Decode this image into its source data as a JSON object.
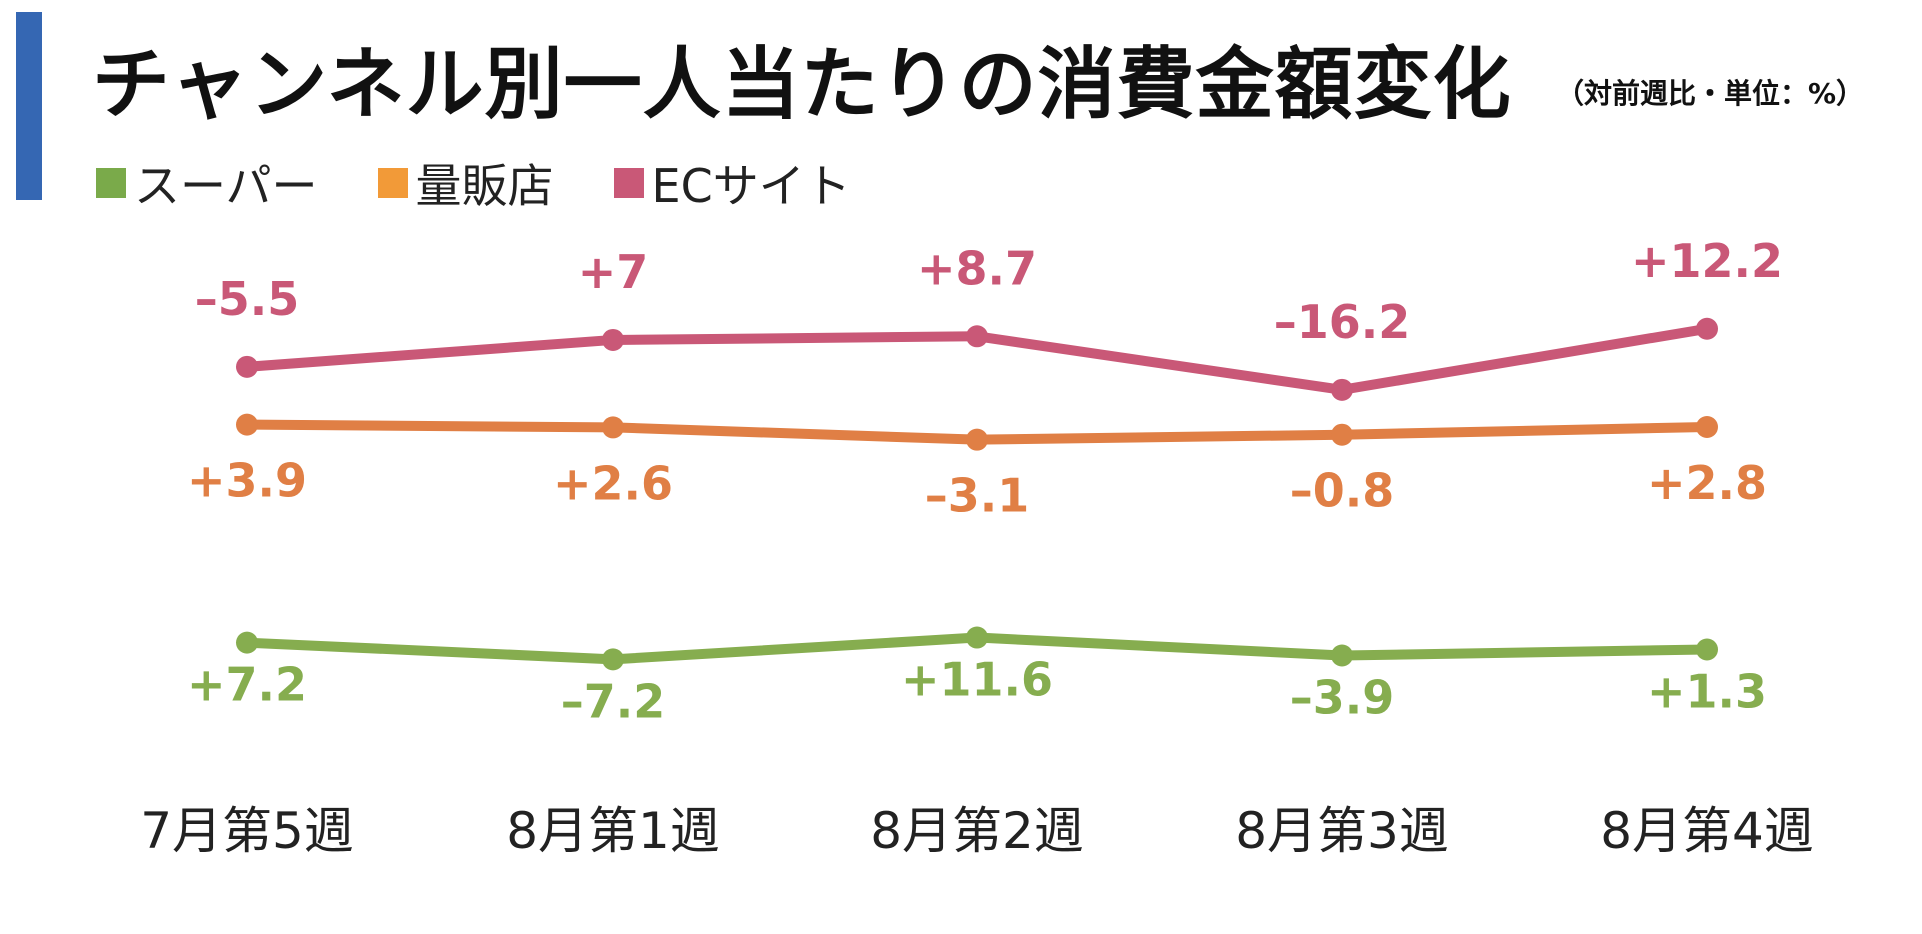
{
  "title": "チャンネル別一人当たりの消費金額変化",
  "subtitle": "（対前週比・単位：%）",
  "colors": {
    "accent_bar": "#3567b3"
  },
  "chart_data": {
    "type": "line",
    "categories": [
      "7月第5週",
      "8月第1週",
      "8月第2週",
      "8月第3週",
      "8月第4週"
    ],
    "legend_position": "top-left",
    "grid": false,
    "series": [
      {
        "name": "ECサイト",
        "color": "#c95877",
        "values": [
          -5.5,
          7,
          8.7,
          -16.2,
          12.2
        ],
        "labels": [
          "–5.5",
          "+7",
          "+8.7",
          "–16.2",
          "+12.2"
        ],
        "label_position": "above"
      },
      {
        "name": "量販店",
        "color": "#e07f45",
        "legend_color": "#f29a38",
        "values": [
          3.9,
          2.6,
          -3.1,
          -0.8,
          2.8
        ],
        "labels": [
          "+3.9",
          "+2.6",
          "–3.1",
          "–0.8",
          "+2.8"
        ],
        "label_position": "below"
      },
      {
        "name": "スーパー",
        "color": "#86ad4f",
        "legend_color": "#7aaa4a",
        "values": [
          7.2,
          -7.2,
          11.6,
          -3.9,
          1.3
        ],
        "labels": [
          "+7.2",
          "–7.2",
          "+11.6",
          "–3.9",
          "+1.3"
        ],
        "label_position": "below"
      }
    ]
  },
  "legend": [
    {
      "label": "スーパー",
      "color": "#7aaa4a"
    },
    {
      "label": "量販店",
      "color": "#f29a38"
    },
    {
      "label": "ECサイト",
      "color": "#c95877"
    }
  ]
}
